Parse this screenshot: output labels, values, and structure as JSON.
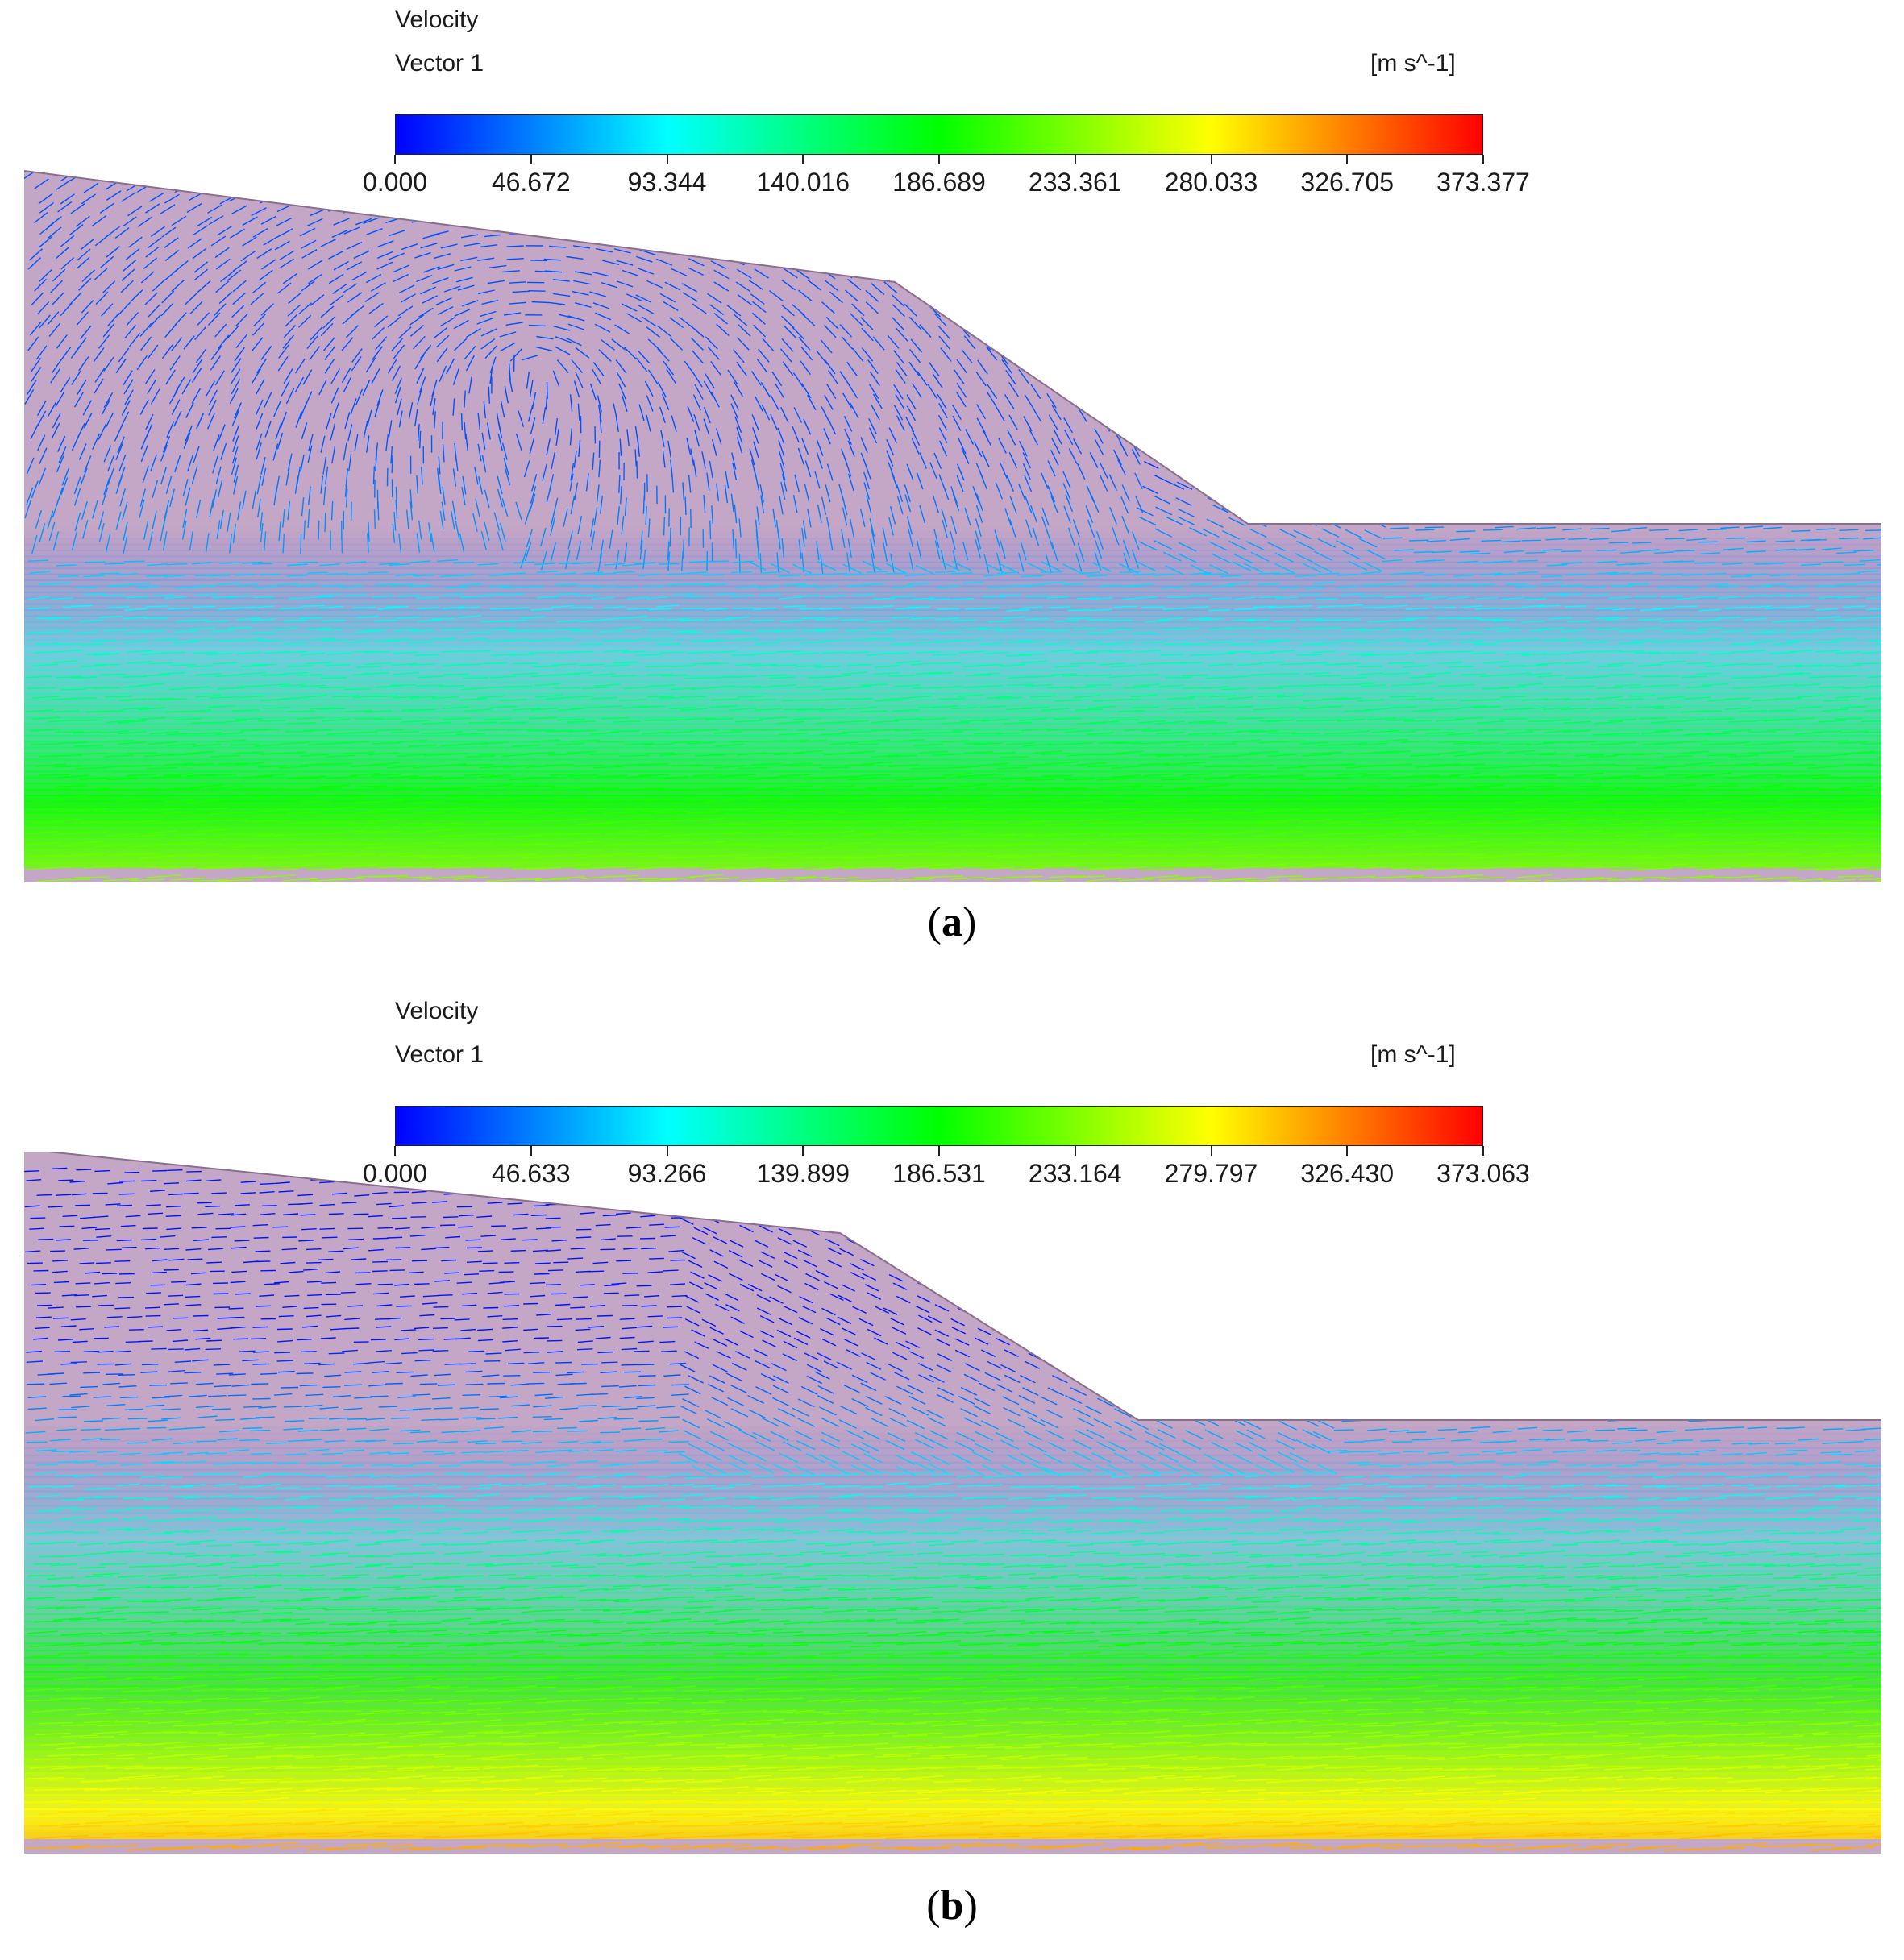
{
  "panels": [
    {
      "id": "a",
      "legend": {
        "title": "Velocity",
        "subtitle": "Vector 1",
        "unit": "[m s^-1]",
        "ticks": [
          "0.000",
          "46.672",
          "93.344",
          "140.016",
          "186.689",
          "233.361",
          "280.033",
          "326.705",
          "373.377"
        ],
        "range": [
          0.0,
          373.377
        ]
      },
      "caption_open": "(",
      "caption_letter": "a",
      "caption_close": ")"
    },
    {
      "id": "b",
      "legend": {
        "title": "Velocity",
        "subtitle": "Vector 1",
        "unit": "[m s^-1]",
        "ticks": [
          "0.000",
          "46.633",
          "93.266",
          "139.899",
          "186.531",
          "233.164",
          "279.797",
          "326.430",
          "373.063"
        ],
        "range": [
          0.0,
          373.063
        ]
      },
      "caption_open": "(",
      "caption_letter": "b",
      "caption_close": ")"
    }
  ],
  "colormap": [
    "#0000ff",
    "#0080ff",
    "#00ffff",
    "#00ff80",
    "#00ff00",
    "#80ff00",
    "#ffff00",
    "#ff8000",
    "#ff0000"
  ],
  "background_fill": "#c4a6c6"
}
